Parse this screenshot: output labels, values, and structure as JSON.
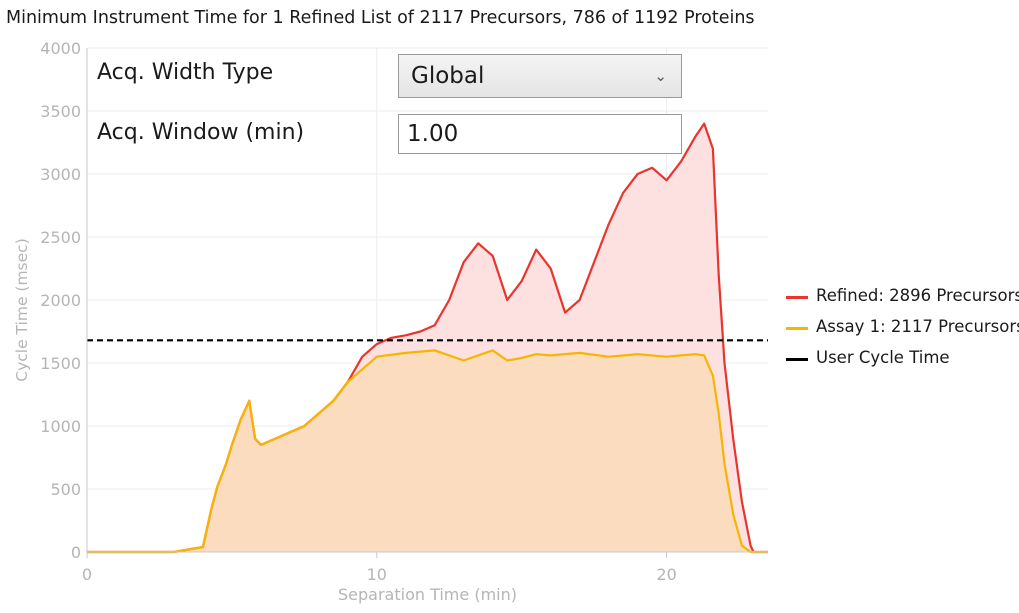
{
  "chart_data": {
    "type": "area",
    "title": "Minimum Instrument Time for 1 Refined List of 2117 Precursors, 786 of 1192 Proteins",
    "xlabel": "Separation Time (min)",
    "ylabel": "Cycle Time (msec)",
    "xlim": [
      0,
      23.5
    ],
    "ylim": [
      0,
      4000
    ],
    "x_ticks": [
      0,
      10,
      20
    ],
    "y_ticks": [
      0,
      500,
      1000,
      1500,
      2000,
      2500,
      3000,
      3500,
      4000
    ],
    "grid": true,
    "legend_position": "right",
    "series": [
      {
        "name": "Refined: 2896 Precursors",
        "color": "#e8352e",
        "fill": "#fde0e0",
        "x": [
          0,
          3.0,
          3.5,
          4.0,
          4.3,
          4.5,
          4.8,
          5.0,
          5.3,
          5.5,
          5.6,
          5.8,
          6.0,
          6.5,
          7.0,
          7.5,
          8.0,
          8.5,
          9.0,
          9.5,
          10.0,
          10.5,
          11.0,
          11.5,
          12.0,
          12.5,
          13.0,
          13.5,
          14.0,
          14.5,
          15.0,
          15.5,
          16.0,
          16.5,
          17.0,
          17.5,
          18.0,
          18.5,
          19.0,
          19.5,
          20.0,
          20.5,
          21.0,
          21.3,
          21.6,
          21.8,
          22.0,
          22.3,
          22.6,
          22.9,
          23.0,
          23.5
        ],
        "y": [
          0,
          0,
          20,
          40,
          350,
          520,
          700,
          850,
          1050,
          1150,
          1200,
          900,
          850,
          900,
          950,
          1000,
          1100,
          1200,
          1350,
          1550,
          1650,
          1700,
          1720,
          1750,
          1800,
          2000,
          2300,
          2450,
          2350,
          2000,
          2150,
          2400,
          2250,
          1900,
          2000,
          2300,
          2600,
          2850,
          3000,
          3050,
          2950,
          3100,
          3300,
          3400,
          3200,
          2200,
          1500,
          900,
          400,
          50,
          0,
          0
        ]
      },
      {
        "name": "Assay 1: 2117 Precursors",
        "color": "#f7b500",
        "fill": "#fbdcbf",
        "x": [
          0,
          3.0,
          3.5,
          4.0,
          4.3,
          4.5,
          4.8,
          5.0,
          5.3,
          5.5,
          5.6,
          5.8,
          6.0,
          6.5,
          7.0,
          7.5,
          8.0,
          8.5,
          9.0,
          9.5,
          10.0,
          11.0,
          12.0,
          12.5,
          13.0,
          13.5,
          14.0,
          14.5,
          15.0,
          15.5,
          16.0,
          17.0,
          18.0,
          19.0,
          20.0,
          20.5,
          21.0,
          21.3,
          21.6,
          21.8,
          22.0,
          22.3,
          22.6,
          22.9,
          23.5
        ],
        "y": [
          0,
          0,
          20,
          40,
          350,
          520,
          700,
          850,
          1050,
          1150,
          1200,
          900,
          850,
          900,
          950,
          1000,
          1100,
          1200,
          1350,
          1450,
          1550,
          1580,
          1600,
          1560,
          1520,
          1560,
          1600,
          1520,
          1540,
          1570,
          1560,
          1580,
          1550,
          1570,
          1550,
          1560,
          1570,
          1560,
          1400,
          1100,
          700,
          300,
          50,
          0,
          0
        ]
      },
      {
        "name": "User Cycle Time",
        "color": "#000000",
        "style": "dashed",
        "x": [
          0,
          23.5
        ],
        "y": [
          1680,
          1680
        ]
      }
    ]
  },
  "controls": {
    "width_type_label": "Acq. Width Type",
    "width_type_value": "Global",
    "window_label": "Acq. Window (min)",
    "window_value": "1.00"
  }
}
